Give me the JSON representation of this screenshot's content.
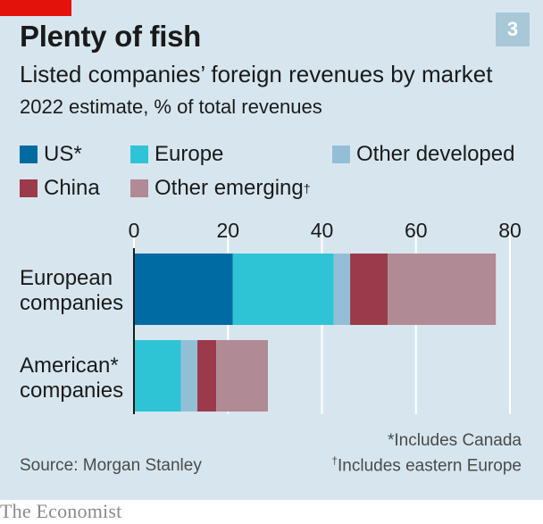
{
  "badge": "3",
  "title": "Plenty of fish",
  "subtitle": "Listed companies’ foreign revenues by market",
  "units": "2022 estimate, % of total revenues",
  "legend": [
    {
      "label": "US*",
      "color": "#006ba2",
      "mark": ""
    },
    {
      "label": "Europe",
      "color": "#2ec4d6",
      "mark": ""
    },
    {
      "label": "Other developed",
      "color": "#93bfd6",
      "mark": ""
    },
    {
      "label": "China",
      "color": "#9b3a4a",
      "mark": ""
    },
    {
      "label": "Other emerging",
      "color": "#b08a94",
      "mark": "†"
    }
  ],
  "chart_data": {
    "type": "bar",
    "orientation": "horizontal",
    "stacked": true,
    "categories": [
      "European companies",
      "American* companies"
    ],
    "category_lines": [
      [
        "European",
        "companies"
      ],
      [
        "American*",
        "companies"
      ]
    ],
    "xlim": [
      0,
      80
    ],
    "xticks": [
      0,
      20,
      40,
      60,
      80
    ],
    "grid": true,
    "legend_position": "top",
    "series": [
      {
        "name": "US*",
        "color": "#006ba2",
        "values": [
          21,
          0
        ]
      },
      {
        "name": "Europe",
        "color": "#2ec4d6",
        "values": [
          21.5,
          10
        ]
      },
      {
        "name": "Other developed",
        "color": "#93bfd6",
        "values": [
          3.5,
          3.5
        ]
      },
      {
        "name": "China",
        "color": "#9b3a4a",
        "values": [
          8,
          4
        ]
      },
      {
        "name": "Other emerging",
        "color": "#b08a94",
        "values": [
          23,
          11
        ]
      }
    ]
  },
  "footnotes": {
    "canada": "*Includes Canada",
    "europe_mark": "†",
    "europe": "Includes eastern Europe"
  },
  "source": "Source: Morgan Stanley",
  "brand": "The Economist"
}
